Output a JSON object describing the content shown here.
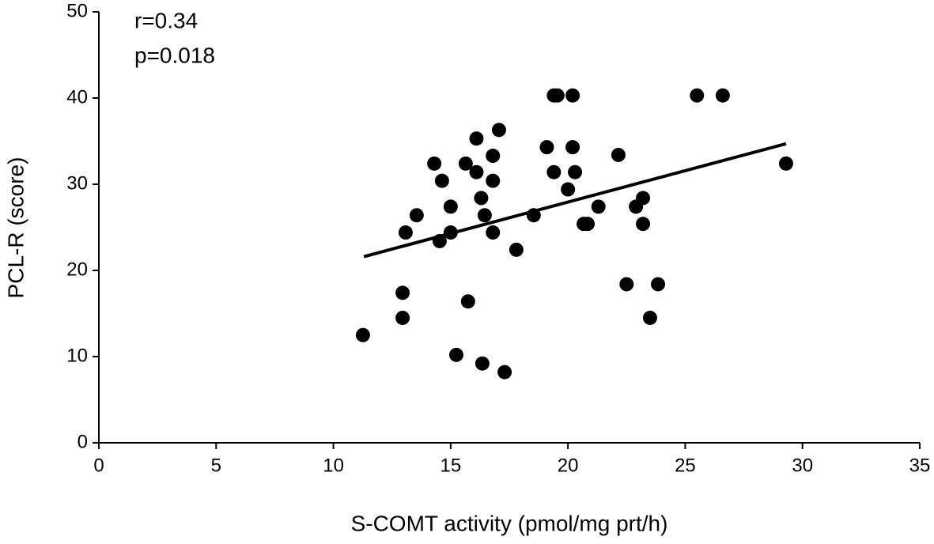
{
  "chart_data": {
    "type": "scatter",
    "x_label": "S-COMT activity (pmol/mg prt/h)",
    "y_label": "PCL-R (score)",
    "annotations": [
      "r=0.34",
      "p=0.018"
    ],
    "color": "#000000",
    "x": [
      11.26,
      12.95,
      12.95,
      13.08,
      13.55,
      14.3,
      14.53,
      14.63,
      15.0,
      15.0,
      15.24,
      15.64,
      15.74,
      16.1,
      16.1,
      16.3,
      16.35,
      16.45,
      16.8,
      16.8,
      16.8,
      17.06,
      17.3,
      17.8,
      18.54,
      19.1,
      19.4,
      19.4,
      19.55,
      20.0,
      20.2,
      20.2,
      20.3,
      20.67,
      20.84,
      21.3,
      22.15,
      22.5,
      22.9,
      23.2,
      23.2,
      23.5,
      23.84,
      25.5,
      26.6,
      29.3
    ],
    "values": [
      12.5,
      17.4,
      14.5,
      24.4,
      26.4,
      32.4,
      23.4,
      30.4,
      27.4,
      24.4,
      10.2,
      32.4,
      16.4,
      35.3,
      31.4,
      28.4,
      9.2,
      26.4,
      33.3,
      30.4,
      24.4,
      36.3,
      8.2,
      22.4,
      26.4,
      34.3,
      31.4,
      40.3,
      40.3,
      29.4,
      40.3,
      34.3,
      31.4,
      25.4,
      25.4,
      27.4,
      33.4,
      18.4,
      27.4,
      28.4,
      25.4,
      14.5,
      18.4,
      40.3,
      40.3,
      32.4
    ],
    "trendline": {
      "x": [
        11.3,
        29.3
      ],
      "values": [
        21.6,
        34.7
      ]
    },
    "xlim": [
      0,
      35
    ],
    "xticks": [
      0,
      5,
      10,
      15,
      20,
      25,
      30,
      35
    ],
    "ylim": [
      0,
      50
    ],
    "yticks": [
      0,
      10,
      20,
      30,
      40,
      50
    ]
  }
}
